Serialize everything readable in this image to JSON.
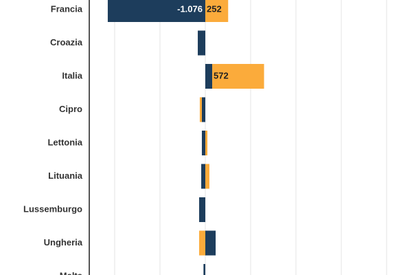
{
  "chart_data": {
    "type": "bar",
    "orientation": "horizontal",
    "stacked": true,
    "categories": [
      "Francia",
      "Croazia",
      "Italia",
      "Cipro",
      "Lettonia",
      "Lituania",
      "Lussemburgo",
      "Ungheria",
      "Malta"
    ],
    "series": [
      {
        "color": "#1d3d5c",
        "values": [
          -1076,
          -83,
          76,
          -38,
          -38,
          -45,
          -68,
          114,
          -20
        ],
        "value_labels": [
          "-1.076",
          null,
          null,
          null,
          null,
          null,
          null,
          null,
          null
        ]
      },
      {
        "color": "#fbab3b",
        "values": [
          252,
          0,
          572,
          -23,
          23,
          45,
          0,
          -68,
          0
        ],
        "value_labels": [
          "252",
          null,
          "572",
          null,
          null,
          null,
          null,
          null,
          null
        ]
      }
    ],
    "xlim": [
      -1280,
      2280
    ],
    "xticks": [
      -1000,
      -500,
      0,
      500,
      1000,
      1500,
      2000
    ],
    "grid": true
  }
}
